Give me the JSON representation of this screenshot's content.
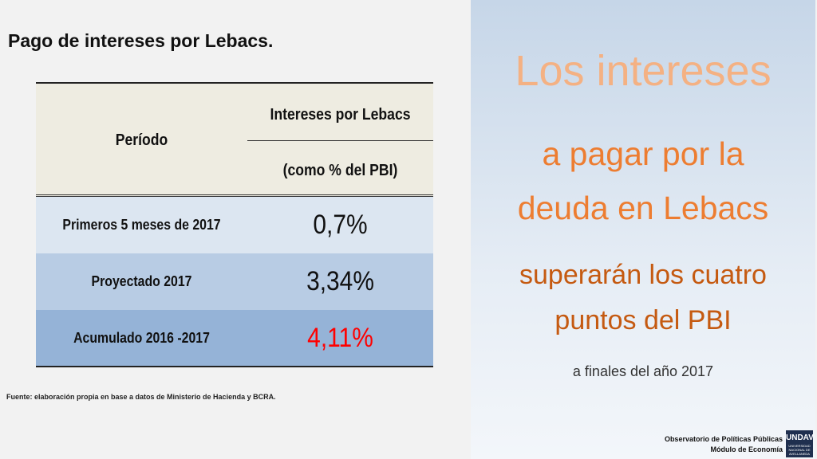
{
  "title": "Pago de intereses por Lebacs.",
  "table": {
    "header": {
      "period": "Período",
      "column_line1": "Intereses por Lebacs",
      "column_line2": "(como % del PBI)"
    },
    "rows": [
      [
        "Primeros 5 meses de 2017",
        "0,7%"
      ],
      [
        "Proyectado 2017",
        "3,34%"
      ],
      [
        "Acumulado 2016 -2017",
        "4,11%"
      ]
    ]
  },
  "source": "Fuente: elaboración propia en base a datos de Ministerio de Hacienda y BCRA.",
  "panel": {
    "lines": [
      "Los intereses",
      "a pagar por la",
      "deuda en Lebacs",
      "superarán los cuatro",
      "puntos del PBI",
      "a finales del año 2017"
    ]
  },
  "footer": {
    "line1": "Observatorio de Políticas Públicas",
    "line2": "Módulo de Economía",
    "logo": "UNDAV",
    "logo_sub": "UNIVERSIDAD NACIONAL DE AVELLANEDA"
  }
}
